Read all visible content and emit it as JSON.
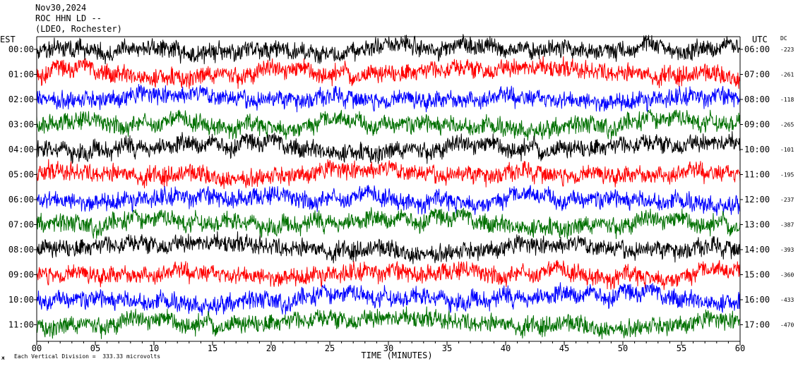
{
  "header": {
    "date": "Nov30,2024",
    "station": "ROC HHN LD --",
    "network": "(LDEO, Rochester)"
  },
  "left_axis_title": "EST",
  "right_axis_title": "UTC",
  "dc_title": "DC",
  "footer": {
    "logo_text": "ж",
    "scale_note": "Each Vertical Division =  333.33 microvolts"
  },
  "chart_data": {
    "type": "line",
    "title": "",
    "xlabel": "TIME (MINUTES)",
    "ylabel": "",
    "xlim": [
      0,
      60
    ],
    "x_ticks": [
      "00",
      "05",
      "10",
      "15",
      "20",
      "25",
      "30",
      "35",
      "40",
      "45",
      "50",
      "55",
      "60"
    ],
    "trace_colors": [
      "#000000",
      "#ff0000",
      "#0000ff",
      "#007000"
    ],
    "grid": false,
    "series": [
      {
        "est": "00:00",
        "utc": "06:00",
        "dc": "-223",
        "color": "#000000"
      },
      {
        "est": "01:00",
        "utc": "07:00",
        "dc": "-261",
        "color": "#ff0000"
      },
      {
        "est": "02:00",
        "utc": "08:00",
        "dc": "-118",
        "color": "#0000ff"
      },
      {
        "est": "03:00",
        "utc": "09:00",
        "dc": "-265",
        "color": "#007000"
      },
      {
        "est": "04:00",
        "utc": "10:00",
        "dc": "-101",
        "color": "#000000"
      },
      {
        "est": "05:00",
        "utc": "11:00",
        "dc": "-195",
        "color": "#ff0000"
      },
      {
        "est": "06:00",
        "utc": "12:00",
        "dc": "-237",
        "color": "#0000ff"
      },
      {
        "est": "07:00",
        "utc": "13:00",
        "dc": "-387",
        "color": "#007000"
      },
      {
        "est": "08:00",
        "utc": "14:00",
        "dc": "-393",
        "color": "#000000"
      },
      {
        "est": "09:00",
        "utc": "15:00",
        "dc": "-360",
        "color": "#ff0000"
      },
      {
        "est": "10:00",
        "utc": "16:00",
        "dc": "-433",
        "color": "#0000ff"
      },
      {
        "est": "11:00",
        "utc": "17:00",
        "dc": "-470",
        "color": "#007000"
      }
    ]
  }
}
